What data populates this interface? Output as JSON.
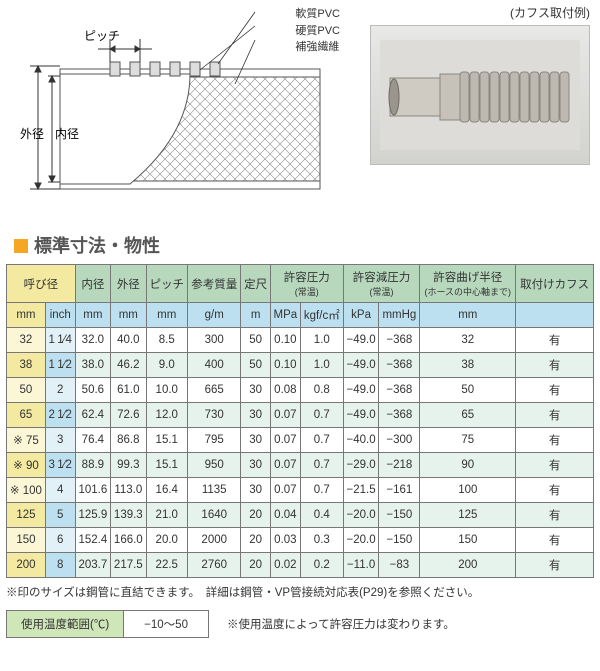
{
  "diagram": {
    "legend": [
      "軟質PVC",
      "硬質PVC",
      "補強繊維"
    ],
    "labels": {
      "pitch": "ピッチ",
      "outer": "外径",
      "inner": "内径"
    }
  },
  "photo_caption": "(カフス取付例)",
  "section_title": "標準寸法・物性",
  "table": {
    "headers": {
      "size": "呼び径",
      "id": "内径",
      "od": "外径",
      "pitch": "ピッチ",
      "mass": "参考質量",
      "length": "定尺",
      "pressure": "許容圧力",
      "pressure_sub": "(常温)",
      "vacuum": "許容減圧力",
      "vacuum_sub": "(常温)",
      "bend": "許容曲げ半径",
      "bend_sub": "(ホースの中心軸まで)",
      "cuffs": "取付けカフス"
    },
    "units": {
      "mm": "mm",
      "inch": "inch",
      "gm": "g/m",
      "m": "m",
      "mpa": "MPa",
      "kgf": "kgf/c㎡",
      "kpa": "kPa",
      "mmhg": "mmHg"
    },
    "rows": [
      {
        "mark": "",
        "mm": "32",
        "inch": "1 1/4",
        "id": "32.0",
        "od": "40.0",
        "pitch": "8.5",
        "mass": "300",
        "len": "50",
        "mpa": "0.10",
        "kgf": "1.0",
        "kpa": "−49.0",
        "mmhg": "−368",
        "bend": "32",
        "cuff": "有",
        "s": "a"
      },
      {
        "mark": "",
        "mm": "38",
        "inch": "1 1/2",
        "id": "38.0",
        "od": "46.2",
        "pitch": "9.0",
        "mass": "400",
        "len": "50",
        "mpa": "0.10",
        "kgf": "1.0",
        "kpa": "−49.0",
        "mmhg": "−368",
        "bend": "38",
        "cuff": "有",
        "s": "b"
      },
      {
        "mark": "",
        "mm": "50",
        "inch": "2",
        "id": "50.6",
        "od": "61.0",
        "pitch": "10.0",
        "mass": "665",
        "len": "30",
        "mpa": "0.08",
        "kgf": "0.8",
        "kpa": "−49.0",
        "mmhg": "−368",
        "bend": "50",
        "cuff": "有",
        "s": "a"
      },
      {
        "mark": "",
        "mm": "65",
        "inch": "2 1/2",
        "id": "62.4",
        "od": "72.6",
        "pitch": "12.0",
        "mass": "730",
        "len": "30",
        "mpa": "0.07",
        "kgf": "0.7",
        "kpa": "−49.0",
        "mmhg": "−368",
        "bend": "65",
        "cuff": "有",
        "s": "b"
      },
      {
        "mark": "※",
        "mm": "75",
        "inch": "3",
        "id": "76.4",
        "od": "86.8",
        "pitch": "15.1",
        "mass": "795",
        "len": "30",
        "mpa": "0.07",
        "kgf": "0.7",
        "kpa": "−40.0",
        "mmhg": "−300",
        "bend": "75",
        "cuff": "有",
        "s": "a"
      },
      {
        "mark": "※",
        "mm": "90",
        "inch": "3 1/2",
        "id": "88.9",
        "od": "99.3",
        "pitch": "15.1",
        "mass": "950",
        "len": "30",
        "mpa": "0.07",
        "kgf": "0.7",
        "kpa": "−29.0",
        "mmhg": "−218",
        "bend": "90",
        "cuff": "有",
        "s": "b"
      },
      {
        "mark": "※",
        "mm": "100",
        "inch": "4",
        "id": "101.6",
        "od": "113.0",
        "pitch": "16.4",
        "mass": "1135",
        "len": "30",
        "mpa": "0.07",
        "kgf": "0.7",
        "kpa": "−21.5",
        "mmhg": "−161",
        "bend": "100",
        "cuff": "有",
        "s": "a"
      },
      {
        "mark": "",
        "mm": "125",
        "inch": "5",
        "id": "125.9",
        "od": "139.3",
        "pitch": "21.0",
        "mass": "1640",
        "len": "20",
        "mpa": "0.04",
        "kgf": "0.4",
        "kpa": "−20.0",
        "mmhg": "−150",
        "bend": "125",
        "cuff": "有",
        "s": "b"
      },
      {
        "mark": "",
        "mm": "150",
        "inch": "6",
        "id": "152.4",
        "od": "166.0",
        "pitch": "20.0",
        "mass": "2000",
        "len": "20",
        "mpa": "0.03",
        "kgf": "0.3",
        "kpa": "−20.0",
        "mmhg": "−150",
        "bend": "150",
        "cuff": "有",
        "s": "a"
      },
      {
        "mark": "",
        "mm": "200",
        "inch": "8",
        "id": "203.7",
        "od": "217.5",
        "pitch": "22.5",
        "mass": "2760",
        "len": "20",
        "mpa": "0.02",
        "kgf": "0.2",
        "kpa": "−11.0",
        "mmhg": "−83",
        "bend": "200",
        "cuff": "有",
        "s": "b"
      }
    ]
  },
  "footnote": "※印のサイズは鋼管に直結できます。　詳細は鋼管・VP管接続対応表(P29)を参照ください。",
  "temp": {
    "label": "使用温度範囲(℃)",
    "value": "−10〜50",
    "note": "※使用温度によって許容圧力は変わります。"
  }
}
